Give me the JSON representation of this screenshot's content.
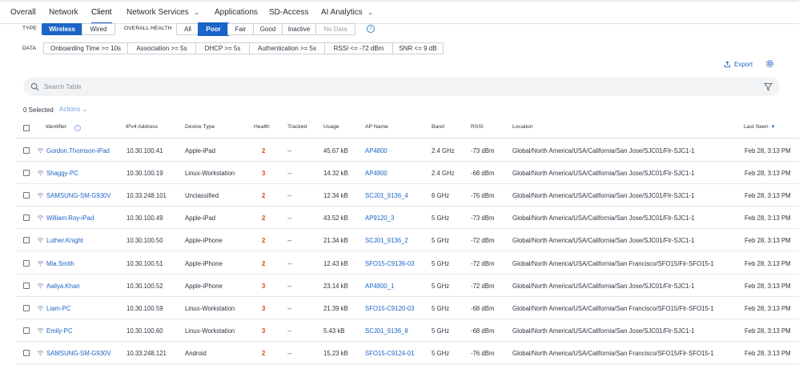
{
  "tabs": [
    {
      "label": "Overall"
    },
    {
      "label": "Network"
    },
    {
      "label": "Client"
    },
    {
      "label": "Network Services"
    },
    {
      "label": "Applications"
    },
    {
      "label": "SD-Access"
    },
    {
      "label": "AI Analytics"
    }
  ],
  "filters": {
    "type_label": "TYPE",
    "type_options": [
      "Wireless",
      "Wired"
    ],
    "health_label": "OVERALL HEALTH",
    "health_options": [
      "All",
      "Poor",
      "Fair",
      "Good",
      "Inactive",
      "No Data"
    ],
    "data_label": "DATA",
    "data_options": [
      "Onboarding Time >= 10s",
      "Association >= 5s",
      "DHCP >= 5s",
      "Authentication >= 5s",
      "RSSI <= -72 dBm",
      "SNR <= 9 dB"
    ]
  },
  "export_label": "Export",
  "search": {
    "placeholder": "Search Table"
  },
  "selected_text": "0 Selected",
  "actions_label": "Actions",
  "columns": [
    "Identifier",
    "IPv4 Address",
    "Device Type",
    "Health",
    "Tracked",
    "Usage",
    "AP Name",
    "Band",
    "RSSI",
    "Location",
    "Last Seen"
  ],
  "health_color": "#d9480f",
  "accent_color": "#1b64c8",
  "rows": [
    {
      "id": "Gordon.Thomson-iPad",
      "ip": "10.30.100.41",
      "device": "Apple-iPad",
      "health": "2",
      "tracked": "--",
      "usage": "45.67 kB",
      "ap": "AP4800",
      "band": "2.4 GHz",
      "rssi": "-73 dBm",
      "location": "Global/North America/USA/California/San Jose/SJC01/Flr-SJC1-1",
      "last_seen": "Feb 28, 3:13 PM"
    },
    {
      "id": "Shaggy-PC",
      "ip": "10.30.100.19",
      "device": "Linux-Workstation",
      "health": "3",
      "tracked": "--",
      "usage": "14.32 kB",
      "ap": "AP4800",
      "band": "2.4 GHz",
      "rssi": "-68 dBm",
      "location": "Global/North America/USA/California/San Jose/SJC01/Flr-SJC1-1",
      "last_seen": "Feb 28, 3:13 PM"
    },
    {
      "id": "SAMSUNG-SM-G930V",
      "ip": "10.33.248.101",
      "device": "Unclassified",
      "health": "2",
      "tracked": "--",
      "usage": "12.34 kB",
      "ap": "SCJ01_9136_4",
      "band": "6 GHz",
      "rssi": "-76 dBm",
      "location": "Global/North America/USA/California/San Jose/SJC01/Flr-SJC1-1",
      "last_seen": "Feb 28, 3:13 PM"
    },
    {
      "id": "William.Roy-iPad",
      "ip": "10.30.100.49",
      "device": "Apple-iPad",
      "health": "2",
      "tracked": "--",
      "usage": "43.52 kB",
      "ap": "AP9120_3",
      "band": "5 GHz",
      "rssi": "-73 dBm",
      "location": "Global/North America/USA/California/San Jose/SJC01/Flr-SJC1-1",
      "last_seen": "Feb 28, 3:13 PM"
    },
    {
      "id": "Luther.Knight",
      "ip": "10.30.100.50",
      "device": "Apple-iPhone",
      "health": "2",
      "tracked": "--",
      "usage": "21.34 kB",
      "ap": "SCJ01_9136_2",
      "band": "5 GHz",
      "rssi": "-72 dBm",
      "location": "Global/North America/USA/California/San Jose/SJC01/Flr-SJC1-1",
      "last_seen": "Feb 28, 3:13 PM"
    },
    {
      "id": "Mia.Smith",
      "ip": "10.30.100.51",
      "device": "Apple-iPhone",
      "health": "2",
      "tracked": "--",
      "usage": "12.43 kB",
      "ap": "SFO15-C9136-03",
      "band": "5 GHz",
      "rssi": "-72 dBm",
      "location": "Global/North America/USA/California/San Francisco/SFO15/Flr-SFO15-1",
      "last_seen": "Feb 28, 3:13 PM"
    },
    {
      "id": "Aaliya.Khan",
      "ip": "10.30.100.52",
      "device": "Apple-iPhone",
      "health": "3",
      "tracked": "--",
      "usage": "23.14 kB",
      "ap": "AP4800_1",
      "band": "5 GHz",
      "rssi": "-72 dBm",
      "location": "Global/North America/USA/California/San Jose/SJC01/Flr-SJC1-1",
      "last_seen": "Feb 28, 3:13 PM"
    },
    {
      "id": "Liam-PC",
      "ip": "10.30.100.59",
      "device": "Linux-Workstation",
      "health": "3",
      "tracked": "--",
      "usage": "21.39 kB",
      "ap": "SFO15-C9120-03",
      "band": "5 GHz",
      "rssi": "-68 dBm",
      "location": "Global/North America/USA/California/San Francisco/SFO15/Flr-SFO15-1",
      "last_seen": "Feb 28, 3:13 PM"
    },
    {
      "id": "Emily-PC",
      "ip": "10.30.100.60",
      "device": "Linux-Workstation",
      "health": "3",
      "tracked": "--",
      "usage": "5.43 kB",
      "ap": "SCJ01_9136_8",
      "band": "5 GHz",
      "rssi": "-68 dBm",
      "location": "Global/North America/USA/California/San Jose/SJC01/Flr-SJC1-1",
      "last_seen": "Feb 28, 3:13 PM"
    },
    {
      "id": "SAMSUNG-SM-G930V",
      "ip": "10.33.248.121",
      "device": "Android",
      "health": "2",
      "tracked": "--",
      "usage": "15.23 kB",
      "ap": "SFO15-C9124-01",
      "band": "5 GHz",
      "rssi": "-76 dBm",
      "location": "Global/North America/USA/California/San Francisco/SFO15/Flr-SFO15-1",
      "last_seen": "Feb 28, 3:13 PM"
    }
  ]
}
